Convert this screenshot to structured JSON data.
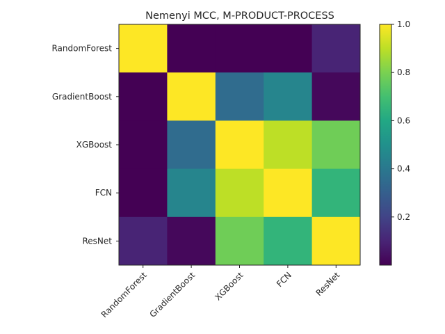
{
  "chart_data": {
    "type": "heatmap",
    "title": "Nemenyi MCC, M-PRODUCT-PROCESS",
    "xlabel": "",
    "ylabel": "",
    "row_labels": [
      "RandomForest",
      "GradientBoost",
      "XGBoost",
      "FCN",
      "ResNet"
    ],
    "col_labels": [
      "RandomForest",
      "GradientBoost",
      "XGBoost",
      "FCN",
      "ResNet"
    ],
    "values": [
      [
        1.0,
        0.0,
        0.0,
        0.0,
        0.1
      ],
      [
        0.0,
        1.0,
        0.35,
        0.45,
        0.02
      ],
      [
        0.0,
        0.35,
        1.0,
        0.9,
        0.78
      ],
      [
        0.0,
        0.45,
        0.9,
        1.0,
        0.65
      ],
      [
        0.1,
        0.02,
        0.78,
        0.65,
        1.0
      ]
    ],
    "colormap": "viridis",
    "colorbar": {
      "range": [
        0.0,
        1.0
      ],
      "ticks": [
        0.2,
        0.4,
        0.6,
        0.8,
        1.0
      ],
      "tick_labels": [
        "0.2",
        "0.4",
        "0.6",
        "0.8",
        "1.0"
      ]
    },
    "grid": false
  }
}
